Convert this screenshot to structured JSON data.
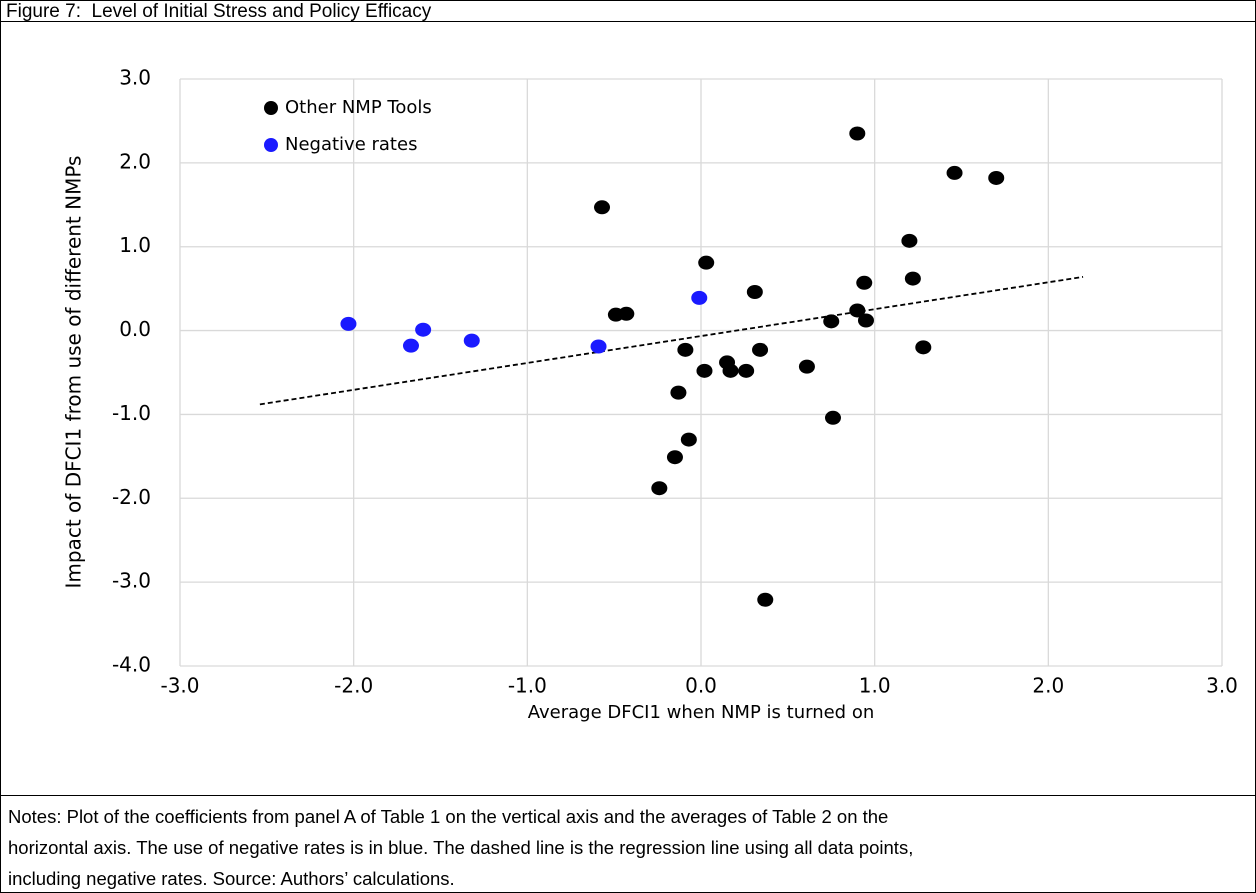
{
  "chart_data": {
    "type": "scatter",
    "title": "Figure 7:  Level of Initial Stress and Policy Efficacy",
    "xlabel": "Average DFCI1 when NMP is turned on",
    "ylabel": "Impact of DFCI1 from use of different NMPs",
    "xlim": [
      -3,
      3
    ],
    "ylim": [
      -4,
      3
    ],
    "xticks": [
      {
        "value": -3,
        "label": "-3.0"
      },
      {
        "value": -2,
        "label": "-2.0"
      },
      {
        "value": -1,
        "label": "-1.0"
      },
      {
        "value": 0,
        "label": "0.0"
      },
      {
        "value": 1,
        "label": "1.0"
      },
      {
        "value": 2,
        "label": "2.0"
      },
      {
        "value": 3,
        "label": "3.0"
      }
    ],
    "yticks": [
      {
        "value": -4,
        "label": "-4.0"
      },
      {
        "value": -3,
        "label": "-3.0"
      },
      {
        "value": -2,
        "label": "-2.0"
      },
      {
        "value": -1,
        "label": "-1.0"
      },
      {
        "value": 0,
        "label": "0.0"
      },
      {
        "value": 1,
        "label": "1.0"
      },
      {
        "value": 2,
        "label": "2.0"
      },
      {
        "value": 3,
        "label": "3.0"
      }
    ],
    "grid": true,
    "legend": "upper left",
    "series": [
      {
        "name": "Other NMP Tools",
        "color": "#000000",
        "x": [
          0.9,
          1.46,
          1.7,
          -0.57,
          1.2,
          0.03,
          1.22,
          0.94,
          0.31,
          -0.49,
          -0.43,
          0.9,
          0.75,
          0.95,
          0.34,
          -0.09,
          1.28,
          0.15,
          0.61,
          0.02,
          0.17,
          0.26,
          -0.13,
          0.76,
          -0.07,
          -0.15,
          -0.24,
          0.37
        ],
        "values": [
          2.35,
          1.88,
          1.82,
          1.47,
          1.07,
          0.81,
          0.62,
          0.57,
          0.46,
          0.19,
          0.2,
          0.24,
          0.11,
          0.12,
          -0.23,
          -0.23,
          -0.2,
          -0.38,
          -0.43,
          -0.48,
          -0.48,
          -0.48,
          -0.74,
          -1.04,
          -1.3,
          -1.51,
          -1.88,
          -3.21
        ]
      },
      {
        "name": "Negative rates",
        "color": "#1a1aff",
        "x": [
          -2.03,
          -1.67,
          -1.6,
          -1.32,
          -0.59,
          -0.01
        ],
        "values": [
          0.08,
          -0.18,
          0.01,
          -0.12,
          -0.19,
          0.39
        ]
      }
    ],
    "trend_line": {
      "x": [
        -2.54,
        2.2
      ],
      "y": [
        -0.88,
        0.64
      ],
      "color": "#000000"
    },
    "notes": [
      "Notes: Plot of the coefficients from panel A of Table 1 on the vertical axis and the averages of Table 2 on the",
      "horizontal axis. The use of negative rates is in blue. The dashed line is the regression line using all data points,",
      "including negative rates. Source: Authors’ calculations."
    ]
  }
}
